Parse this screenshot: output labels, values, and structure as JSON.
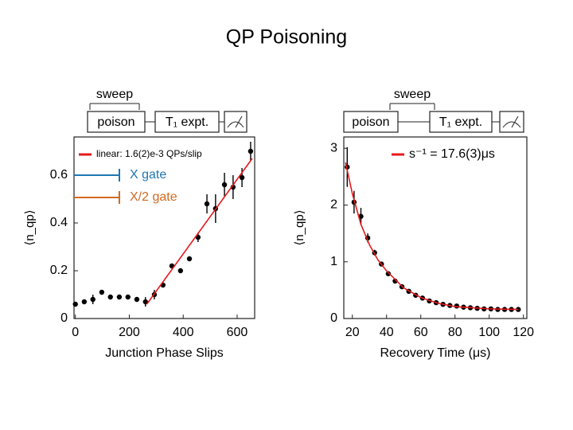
{
  "title": "QP Poisoning",
  "schematics": [
    {
      "sweep": "sweep",
      "poison": "poison",
      "experiment": "T₁ expt."
    },
    {
      "sweep": "sweep",
      "poison": "poison",
      "experiment": "T₁ expt."
    }
  ],
  "chart_data": [
    {
      "type": "scatter",
      "x_label": "Junction Phase Slips",
      "y_label": "⟨n_qp⟩",
      "xlim": [
        -5,
        665
      ],
      "xticks": [
        0,
        200,
        400,
        600
      ],
      "ylim": [
        0,
        0.76
      ],
      "yticks": [
        0,
        0.2,
        0.4,
        0.6
      ],
      "legend": "upper left",
      "annotations": [
        {
          "text": "X gate",
          "color": "#1f77b4"
        },
        {
          "text": "X/2 gate",
          "color": "#d2691e"
        }
      ],
      "series": [
        {
          "color": "#000000",
          "kind": "points",
          "x": [
            0,
            33,
            65,
            98,
            130,
            163,
            195,
            228,
            260,
            293,
            325,
            358,
            390,
            423,
            455,
            488,
            520,
            553,
            585,
            618,
            650
          ],
          "values": [
            0.06,
            0.07,
            0.08,
            0.11,
            0.09,
            0.09,
            0.09,
            0.08,
            0.07,
            0.1,
            0.14,
            0.22,
            0.2,
            0.25,
            0.34,
            0.48,
            0.46,
            0.56,
            0.55,
            0.59,
            0.7
          ],
          "errors": [
            0.01,
            0.01,
            0.02,
            0.01,
            0.01,
            0.01,
            0.01,
            0.01,
            0.02,
            0.02,
            0.01,
            0.01,
            0.01,
            0.01,
            0.02,
            0.04,
            0.06,
            0.05,
            0.05,
            0.04,
            0.04
          ]
        },
        {
          "name": "linear: 1.6(2)e-3 QPs/slip",
          "color": "#e41a1c",
          "kind": "line",
          "x": [
            265,
            656
          ],
          "values": [
            0.06,
            0.67
          ]
        }
      ]
    },
    {
      "type": "scatter",
      "x_label": "Recovery Time (μs)",
      "y_label": "⟨n_qp⟩",
      "xlim": [
        15,
        122
      ],
      "xticks": [
        20,
        40,
        60,
        80,
        100,
        120
      ],
      "ylim": [
        0,
        3.2
      ],
      "yticks": [
        0,
        1,
        2,
        3
      ],
      "legend": "upper right",
      "series": [
        {
          "color": "#000000",
          "kind": "points",
          "x": [
            17,
            21,
            25,
            29,
            33,
            37,
            41,
            45,
            49,
            53,
            57,
            61,
            65,
            69,
            73,
            77,
            81,
            85,
            89,
            93,
            97,
            101,
            105,
            109,
            113,
            117
          ],
          "values": [
            2.67,
            2.05,
            1.8,
            1.42,
            1.16,
            0.96,
            0.79,
            0.66,
            0.56,
            0.48,
            0.41,
            0.36,
            0.31,
            0.28,
            0.25,
            0.23,
            0.22,
            0.2,
            0.19,
            0.18,
            0.17,
            0.17,
            0.16,
            0.16,
            0.16,
            0.16
          ],
          "errors": [
            0.35,
            0.2,
            0.15,
            0.08,
            0.05,
            0.04,
            0.04,
            0.03,
            0.03,
            0.03,
            0.03,
            0.03,
            0.03,
            0.03,
            0.03,
            0.03,
            0.03,
            0.03,
            0.03,
            0.03,
            0.03,
            0.03,
            0.03,
            0.03,
            0.03,
            0.03
          ]
        },
        {
          "name": "s⁻¹ = 17.6(3)μs",
          "color": "#e41a1c",
          "kind": "line",
          "x": [
            16,
            20,
            25,
            30,
            35,
            40,
            50,
            60,
            70,
            80,
            90,
            100,
            117
          ],
          "values": [
            2.75,
            2.2,
            1.66,
            1.3,
            1.03,
            0.84,
            0.54,
            0.37,
            0.27,
            0.21,
            0.19,
            0.17,
            0.16
          ]
        }
      ]
    }
  ]
}
